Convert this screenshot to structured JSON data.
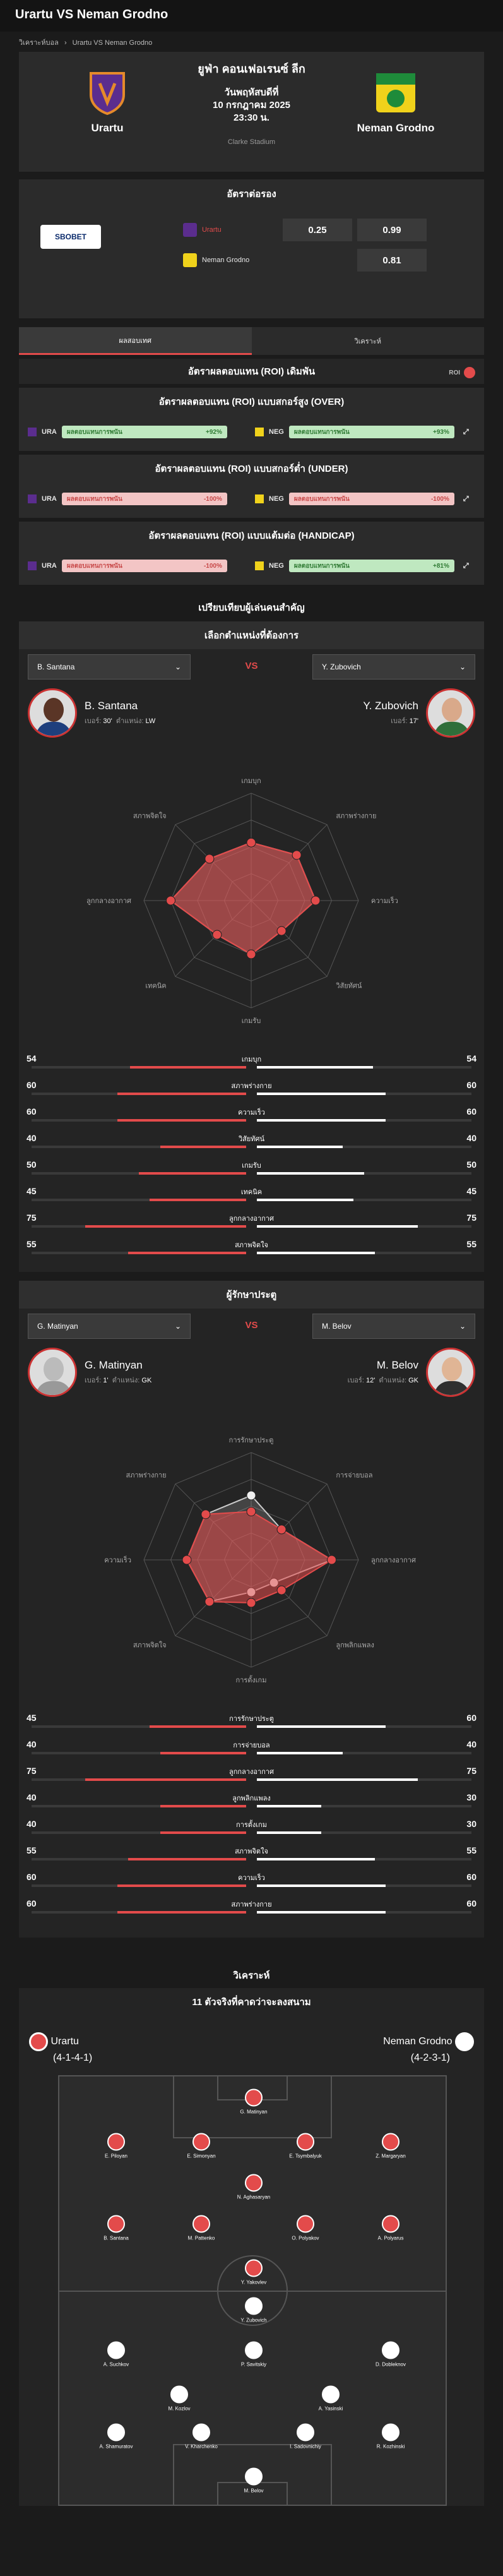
{
  "header": {
    "title": "Urartu VS Neman Grodno"
  },
  "breadcrumb": {
    "home": "วิเคราะห์บอล",
    "sep": "›",
    "current": "Urartu VS Neman Grodno"
  },
  "match": {
    "league": "ยูฟ่า คอนเฟอเรนซ์ ลีก",
    "day": "วันพฤหัสบดีที่",
    "date": "10 กรกฎาคม 2025",
    "time": "23:30 น.",
    "stadium": "Clarke Stadium",
    "home": "Urartu",
    "away": "Neman Grodno",
    "home_color": "#5b2d8e",
    "away_color": "#f0d21b"
  },
  "odds": {
    "title": "อัตราต่อรอง",
    "bookmaker": "SBOBET",
    "home": "Urartu",
    "away": "Neman Grodno",
    "handicap": "0.25",
    "home_price": "0.99",
    "away_price": "0.81"
  },
  "tabs": [
    {
      "label": "ผลสอบเทศ"
    },
    {
      "label": "วิเคราะห์"
    }
  ],
  "roi": {
    "title": "อัตราผลตอบแทน (ROI) เดิมพัน",
    "toggle": "ROI",
    "blocks": [
      {
        "title": "อัตราผลตอบแทน (ROI) แบบสกอร์สูง (OVER)",
        "home_code": "URA",
        "home_bar": "ผลตอบแทนการพนัน",
        "home_pct": "+92%",
        "home_sign": "pos",
        "away_code": "NEG",
        "away_bar": "ผลตอบแทนการพนัน",
        "away_pct": "+93%",
        "away_sign": "pos"
      },
      {
        "title": "อัตราผลตอบแทน (ROI) แบบสกอร์ต่ำ (UNDER)",
        "home_code": "URA",
        "home_bar": "ผลตอบแทนการพนัน",
        "home_pct": "-100%",
        "home_sign": "neg",
        "away_code": "NEG",
        "away_bar": "ผลตอบแทนการพนัน",
        "away_pct": "-100%",
        "away_sign": "neg"
      },
      {
        "title": "อัตราผลตอบแทน (ROI) แบบแต้มต่อ (HANDICAP)",
        "home_code": "URA",
        "home_bar": "ผลตอบแทนการพนัน",
        "home_pct": "-100%",
        "home_sign": "neg",
        "away_code": "NEG",
        "away_bar": "ผลตอบแทนการพนัน",
        "away_pct": "+81%",
        "away_sign": "pos"
      }
    ]
  },
  "key_players": {
    "title": "เปรียบเทียบผู้เล่นคนสำคัญ",
    "select_title": "เลือกตำแหน่งที่ต้องการ",
    "vs": "VS",
    "fw": {
      "left_select": "B. Santana",
      "right_select": "Y. Zubovich",
      "left": {
        "name": "B. Santana",
        "number_label": "เบอร์:",
        "number": "30'",
        "pos_label": "ตำแหน่ง:",
        "pos": "LW"
      },
      "right": {
        "name": "Y. Zubovich",
        "number_label": "เบอร์:",
        "number": "17'"
      },
      "radar_axes": [
        "เกมบุก",
        "สภาพร่างกาย",
        "ความเร็ว",
        "วิสัยทัศน์",
        "เกมรับ",
        "เทคนิค",
        "ลูกกลางอากาศ",
        "สภาพจิตใจ"
      ],
      "left_values": [
        54,
        60,
        60,
        40,
        50,
        45,
        75,
        55
      ],
      "right_values": [
        54,
        60,
        60,
        40,
        50,
        45,
        75,
        55
      ],
      "stats": [
        {
          "label": "เกมบุก",
          "l": "54",
          "r": "54"
        },
        {
          "label": "สภาพร่างกาย",
          "l": "60",
          "r": "60"
        },
        {
          "label": "ความเร็ว",
          "l": "60",
          "r": "60"
        },
        {
          "label": "วิสัยทัศน์",
          "l": "40",
          "r": "40"
        },
        {
          "label": "เกมรับ",
          "l": "50",
          "r": "50"
        },
        {
          "label": "เทคนิค",
          "l": "45",
          "r": "45"
        },
        {
          "label": "ลูกกลางอากาศ",
          "l": "75",
          "r": "75"
        },
        {
          "label": "สภาพจิตใจ",
          "l": "55",
          "r": "55"
        }
      ]
    },
    "gk": {
      "title": "ผู้รักษาประตู",
      "left_select": "G. Matinyan",
      "right_select": "M. Belov",
      "left": {
        "name": "G. Matinyan",
        "number_label": "เบอร์:",
        "number": "1'",
        "pos_label": "ตำแหน่ง:",
        "pos": "GK"
      },
      "right": {
        "name": "M. Belov",
        "number_label": "เบอร์:",
        "number": "12'",
        "pos_label": "ตำแหน่ง:",
        "pos": "GK"
      },
      "radar_axes": [
        "การรักษาประตู",
        "การจ่ายบอล",
        "ลูกกลางอากาศ",
        "ลูกพลิกแพลง",
        "การตั้งเกม",
        "สภาพจิตใจ",
        "ความเร็ว",
        "สภาพร่างกาย"
      ],
      "left_values": [
        45,
        40,
        75,
        40,
        40,
        55,
        60,
        60
      ],
      "right_values": [
        60,
        40,
        75,
        30,
        30,
        55,
        60,
        60
      ],
      "stats": [
        {
          "label": "การรักษาประตู",
          "l": "45",
          "r": "60"
        },
        {
          "label": "การจ่ายบอล",
          "l": "40",
          "r": "40"
        },
        {
          "label": "ลูกกลางอากาศ",
          "l": "75",
          "r": "75"
        },
        {
          "label": "ลูกพลิกแพลง",
          "l": "40",
          "r": "30"
        },
        {
          "label": "การตั้งเกม",
          "l": "40",
          "r": "30"
        },
        {
          "label": "สภาพจิตใจ",
          "l": "55",
          "r": "55"
        },
        {
          "label": "ความเร็ว",
          "l": "60",
          "r": "60"
        },
        {
          "label": "สภาพร่างกาย",
          "l": "60",
          "r": "60"
        }
      ]
    }
  },
  "lineup": {
    "section": "วิเคราะห์",
    "title": "11 ตัวจริงที่คาดว่าจะลงสนาม",
    "home": "Urartu",
    "home_form": "(4-1-4-1)",
    "away": "Neman Grodno",
    "away_form": "(4-2-3-1)",
    "home_players": [
      "G. Matinyan",
      "E. Piloyan",
      "E. Simonyan",
      "E. Tsymbalyuk",
      "Z. Margaryan",
      "N. Aghasaryan",
      "B. Santana",
      "M. Pattenko",
      "O. Polyakov",
      "A. Polyarus",
      "Y. Yakovlev"
    ],
    "away_players": [
      "Y. Zubovich",
      "A. Suchkov",
      "P. Savitskiy",
      "D. Dobleknov",
      "M. Kozlov",
      "A. Yasinski",
      "A. Shamuratov",
      "V. Kharchenko",
      "I. Sadovnichiy",
      "R. Kozhinski",
      "M. Belov"
    ]
  }
}
